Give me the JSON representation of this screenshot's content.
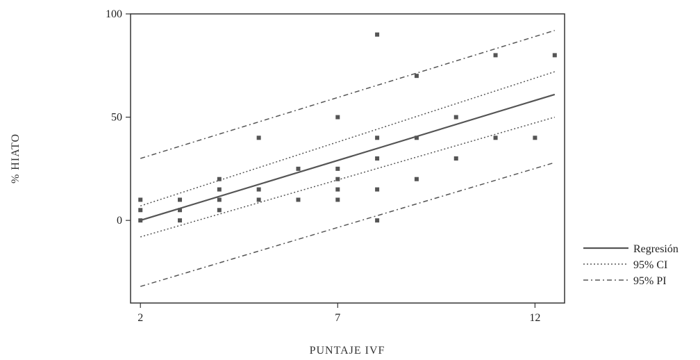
{
  "chart_data": {
    "type": "scatter",
    "xlabel": "PUNTAJE IVF",
    "ylabel": "% HIATO",
    "xlim": [
      1.75,
      12.75
    ],
    "ylim": [
      -40,
      100
    ],
    "x_ticks": [
      2,
      7,
      12
    ],
    "y_ticks": [
      0,
      50,
      100
    ],
    "x_tick_labels": [
      "2",
      "7",
      "12"
    ],
    "y_tick_labels": [
      "0",
      "50",
      "100"
    ],
    "grid": false,
    "legend_position": "right",
    "points": [
      {
        "x": 2,
        "y": 10
      },
      {
        "x": 2,
        "y": 5
      },
      {
        "x": 2,
        "y": 0
      },
      {
        "x": 3,
        "y": 10
      },
      {
        "x": 3,
        "y": 5
      },
      {
        "x": 3,
        "y": 0
      },
      {
        "x": 4,
        "y": 20
      },
      {
        "x": 4,
        "y": 15
      },
      {
        "x": 4,
        "y": 10
      },
      {
        "x": 4,
        "y": 5
      },
      {
        "x": 5,
        "y": 40
      },
      {
        "x": 5,
        "y": 15
      },
      {
        "x": 5,
        "y": 10
      },
      {
        "x": 6,
        "y": 25
      },
      {
        "x": 6,
        "y": 10
      },
      {
        "x": 7,
        "y": 50
      },
      {
        "x": 7,
        "y": 25
      },
      {
        "x": 7,
        "y": 20
      },
      {
        "x": 7,
        "y": 15
      },
      {
        "x": 7,
        "y": 10
      },
      {
        "x": 8,
        "y": 90
      },
      {
        "x": 8,
        "y": 40
      },
      {
        "x": 8,
        "y": 30
      },
      {
        "x": 8,
        "y": 15
      },
      {
        "x": 8,
        "y": 0
      },
      {
        "x": 9,
        "y": 70
      },
      {
        "x": 9,
        "y": 40
      },
      {
        "x": 9,
        "y": 20
      },
      {
        "x": 10,
        "y": 50
      },
      {
        "x": 10,
        "y": 30
      },
      {
        "x": 11,
        "y": 80
      },
      {
        "x": 11,
        "y": 40
      },
      {
        "x": 12,
        "y": 40
      },
      {
        "x": 12.5,
        "y": 80
      }
    ],
    "lines": [
      {
        "name": "Regresión",
        "style": "solid",
        "x": [
          2,
          12.5
        ],
        "y": [
          0,
          61
        ]
      },
      {
        "name": "95% CI",
        "style": "dotted",
        "x": [
          2,
          12.5
        ],
        "y": [
          7,
          72
        ]
      },
      {
        "name": "95% CI",
        "style": "dotted",
        "x": [
          2,
          12.5
        ],
        "y": [
          -8,
          50
        ]
      },
      {
        "name": "95% PI",
        "style": "dashdot",
        "x": [
          2,
          12.5
        ],
        "y": [
          30,
          92
        ]
      },
      {
        "name": "95% PI",
        "style": "dashdot",
        "x": [
          2,
          12.5
        ],
        "y": [
          -32,
          28
        ]
      }
    ],
    "legend": [
      {
        "label": "Regresión",
        "style": "solid"
      },
      {
        "label": "95% CI",
        "style": "dotted"
      },
      {
        "label": "95% PI",
        "style": "dashdot"
      }
    ]
  }
}
